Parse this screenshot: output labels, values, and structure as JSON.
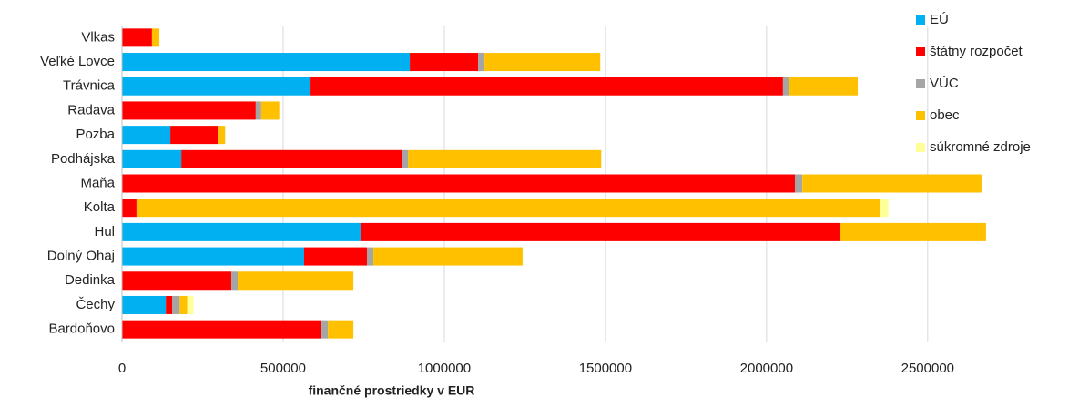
{
  "chart_data": {
    "type": "stacked_bar_horizontal",
    "x_label": "finančné prostriedky  v EUR",
    "categories": [
      "Vlkas",
      "Veľké Lovce",
      "Trávnica",
      "Radava",
      "Pozba",
      "Podhájska",
      "Maňa",
      "Kolta",
      "Hul",
      "Dolný Ohaj",
      "Dedinka",
      "Čechy",
      "Bardoňovo"
    ],
    "series": [
      {
        "name": "EÚ",
        "color": "#00b0f0",
        "values": [
          0,
          893000,
          585000,
          0,
          150000,
          184000,
          0,
          0,
          740000,
          565000,
          0,
          136000,
          0
        ]
      },
      {
        "name": "štátny rozpočet",
        "color": "#ff0000",
        "values": [
          93000,
          212000,
          1466000,
          415000,
          147000,
          684000,
          2088000,
          45000,
          1489000,
          195000,
          339000,
          20000,
          619000
        ]
      },
      {
        "name": "VÚC",
        "color": "#a5a5a5",
        "values": [
          0,
          20000,
          20000,
          17000,
          0,
          20000,
          23000,
          0,
          0,
          20000,
          20000,
          23000,
          20000
        ]
      },
      {
        "name": "obec",
        "color": "#ffc000",
        "values": [
          23000,
          359000,
          212000,
          56000,
          23000,
          599000,
          556000,
          2308000,
          452000,
          463000,
          359000,
          23000,
          79000
        ]
      },
      {
        "name": "súkromné zdroje",
        "color": "#ffff99",
        "values": [
          0,
          0,
          0,
          0,
          0,
          0,
          0,
          25000,
          0,
          0,
          0,
          20000,
          0
        ]
      }
    ],
    "xlim": [
      0,
      2800000
    ],
    "xticks": [
      0,
      500000,
      1000000,
      1500000,
      2000000,
      2500000
    ],
    "grid": true,
    "legend": "right"
  }
}
